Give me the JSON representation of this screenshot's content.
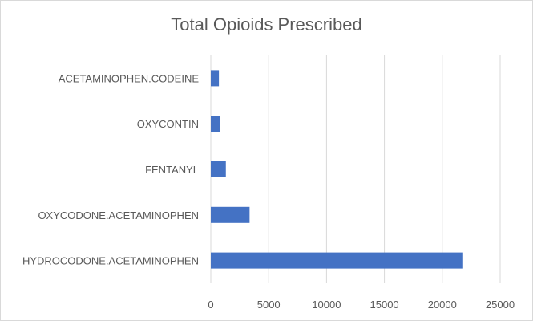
{
  "chart_data": {
    "type": "bar",
    "orientation": "horizontal",
    "title": "Total Opioids Prescribed",
    "categories": [
      "ACETAMINOPHEN.CODEINE",
      "OXYCONTIN",
      "FENTANYL",
      "OXYCODONE.ACETAMINOPHEN",
      "HYDROCODONE.ACETAMINOPHEN"
    ],
    "values": [
      700,
      800,
      1300,
      3350,
      21800
    ],
    "xlim": [
      0,
      25000
    ],
    "xticks": [
      "0",
      "5000",
      "10000",
      "15000",
      "20000",
      "25000"
    ],
    "xlabel": "",
    "ylabel": "",
    "grid": "vertical",
    "bar_color": "#4472C4"
  }
}
